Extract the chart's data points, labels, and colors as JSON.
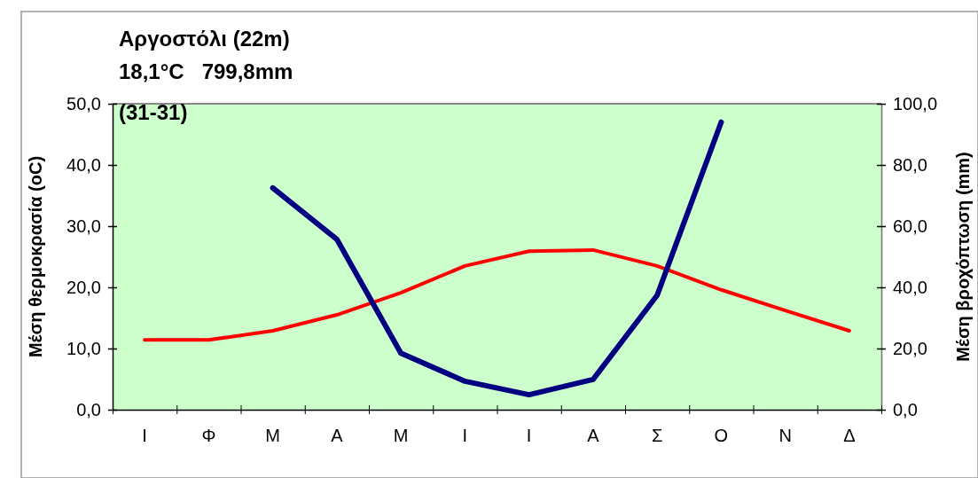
{
  "chart_data": {
    "type": "line",
    "title": "Αργοστόλι (22m)",
    "subtitle": "18,1°C   799,8mm",
    "annotations": [
      "(31-31)"
    ],
    "ylabel": "Μέση θερμοκρασία (oC)",
    "y2label": "Μέση βροχόπτωση (mm)",
    "categories": [
      "Ι",
      "Φ",
      "Μ",
      "Α",
      "Μ",
      "Ι",
      "Ι",
      "Α",
      "Σ",
      "Ο",
      "Ν",
      "Δ"
    ],
    "series": [
      {
        "color": "#ff0000",
        "values": [
          11.4,
          11.4,
          12.9,
          15.5,
          19.1,
          23.5,
          25.9,
          26.1,
          23.5,
          19.6,
          16.2,
          12.9
        ]
      },
      {
        "color": "#000080",
        "axis": "y2",
        "values": [
          null,
          null,
          72.5,
          55.7,
          18.5,
          9.3,
          4.9,
          9.9,
          37.4,
          94,
          null,
          null
        ]
      }
    ],
    "ylim": [
      0,
      50
    ],
    "yticks": [
      {
        "value": 0,
        "label": "0,0"
      },
      {
        "value": 10,
        "label": "10,0"
      },
      {
        "value": 20,
        "label": "20,0"
      },
      {
        "value": 30,
        "label": "30,0"
      },
      {
        "value": 40,
        "label": "40,0"
      },
      {
        "value": 50,
        "label": "50,0"
      }
    ],
    "y2lim": [
      0,
      100
    ],
    "y2ticks": [
      {
        "value": 0,
        "label": "0,0"
      },
      {
        "value": 20,
        "label": "20,0"
      },
      {
        "value": 40,
        "label": "40,0"
      },
      {
        "value": 60,
        "label": "60,0"
      },
      {
        "value": 80,
        "label": "80,0"
      },
      {
        "value": 100,
        "label": "100,0"
      }
    ],
    "grid": false,
    "marker": "none",
    "line_style": "solid"
  }
}
